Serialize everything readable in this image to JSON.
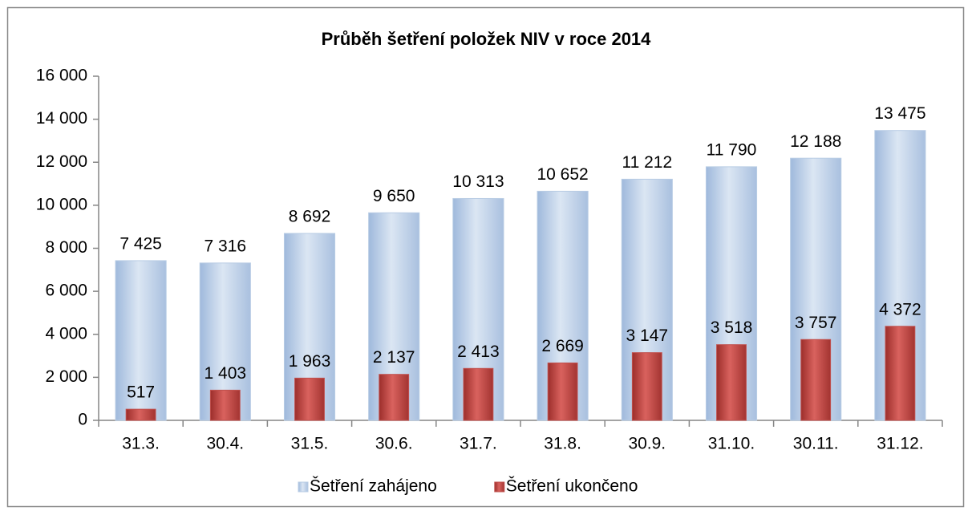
{
  "chart_data": {
    "type": "bar",
    "title": "Průběh šetření položek NIV v roce 2014",
    "categories": [
      "31.3.",
      "30.4.",
      "31.5.",
      "30.6.",
      "31.7.",
      "31.8.",
      "30.9.",
      "31.10.",
      "30.11.",
      "31.12."
    ],
    "series": [
      {
        "name": "Šetření zahájeno",
        "color": "#b8cce4",
        "values": [
          7425,
          7316,
          8692,
          9650,
          10313,
          10652,
          11212,
          11790,
          12188,
          13475
        ],
        "value_labels": [
          "7 425",
          "7 316",
          "8 692",
          "9 650",
          "10 313",
          "10 652",
          "11 212",
          "11 790",
          "12 188",
          "13 475"
        ]
      },
      {
        "name": "Šetření ukončeno",
        "color": "#c0504d",
        "values": [
          517,
          1403,
          1963,
          2137,
          2413,
          2669,
          3147,
          3518,
          3757,
          4372
        ],
        "value_labels": [
          "517",
          "1 403",
          "1 963",
          "2 137",
          "2 413",
          "2 669",
          "3 147",
          "3 518",
          "3 757",
          "4 372"
        ]
      }
    ],
    "ylim": [
      0,
      16000
    ],
    "yticks": [
      0,
      {
        "value": 2000,
        "label": "2 000"
      },
      {
        "value": 4000,
        "label": "4 000"
      },
      {
        "value": 6000,
        "label": "6 000"
      },
      {
        "value": 8000,
        "label": "8 000"
      },
      {
        "value": 10000,
        "label": "10 000"
      },
      {
        "value": 12000,
        "label": "12 000"
      },
      {
        "value": 14000,
        "label": "14 000"
      },
      {
        "value": 16000,
        "label": "16 000"
      }
    ],
    "grid": false,
    "legend": "bottom"
  }
}
